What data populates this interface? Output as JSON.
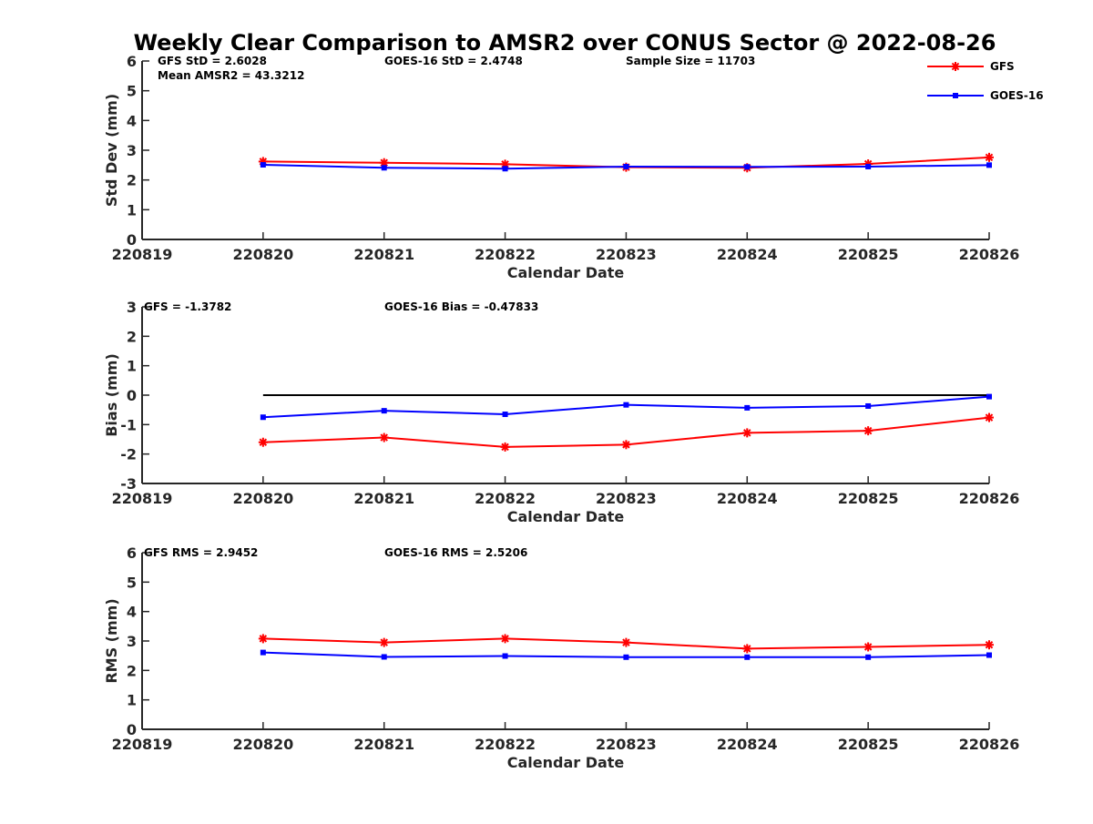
{
  "figure": {
    "title": "Weekly Clear Comparison to AMSR2 over CONUS Sector @ 2022-08-26"
  },
  "legend": {
    "position": "top-right",
    "entries": [
      {
        "name": "GFS",
        "color": "#ff0000",
        "marker": "asterisk"
      },
      {
        "name": "GOES-16",
        "color": "#0000ff",
        "marker": "square"
      }
    ]
  },
  "chart_data": [
    {
      "id": "stddev",
      "type": "line",
      "title": "",
      "xlabel": "Calendar Date",
      "ylabel": "Std Dev (mm)",
      "xlim": [
        0,
        7
      ],
      "ylim": [
        0,
        6
      ],
      "xticklabels": [
        "220819",
        "220820",
        "220821",
        "220822",
        "220823",
        "220824",
        "220825",
        "220826"
      ],
      "yticks": [
        0,
        1,
        2,
        3,
        4,
        5,
        6
      ],
      "grid": false,
      "reference_line": null,
      "annotations": [
        "GFS StD = 2.6028",
        "Mean AMSR2 = 43.3212",
        "GOES-16 StD = 2.4748",
        "Sample Size = 11703"
      ],
      "x": [
        "220820",
        "220821",
        "220822",
        "220823",
        "220824",
        "220825",
        "220826"
      ],
      "series": [
        {
          "name": "GFS",
          "color": "#ff0000",
          "marker": "asterisk",
          "values": [
            2.62,
            2.58,
            2.53,
            2.43,
            2.41,
            2.54,
            2.76
          ]
        },
        {
          "name": "GOES-16",
          "color": "#0000ff",
          "marker": "square",
          "values": [
            2.51,
            2.41,
            2.38,
            2.45,
            2.44,
            2.45,
            2.5
          ]
        }
      ]
    },
    {
      "id": "bias",
      "type": "line",
      "title": "",
      "xlabel": "Calendar Date",
      "ylabel": "Bias (mm)",
      "xlim": [
        0,
        7
      ],
      "ylim": [
        -3,
        3
      ],
      "xticklabels": [
        "220819",
        "220820",
        "220821",
        "220822",
        "220823",
        "220824",
        "220825",
        "220826"
      ],
      "yticks": [
        -3,
        -2,
        -1,
        0,
        1,
        2,
        3
      ],
      "grid": false,
      "reference_line": {
        "y": 0,
        "x_from": 1,
        "x_to": 7,
        "color": "#000000"
      },
      "annotations": [
        "GFS = -1.3782",
        "GOES-16 Bias  = -0.47833"
      ],
      "x": [
        "220820",
        "220821",
        "220822",
        "220823",
        "220824",
        "220825",
        "220826"
      ],
      "series": [
        {
          "name": "GFS",
          "color": "#ff0000",
          "marker": "asterisk",
          "values": [
            -1.6,
            -1.44,
            -1.76,
            -1.68,
            -1.28,
            -1.21,
            -0.76
          ]
        },
        {
          "name": "GOES-16",
          "color": "#0000ff",
          "marker": "square",
          "values": [
            -0.75,
            -0.53,
            -0.65,
            -0.33,
            -0.43,
            -0.37,
            -0.05
          ]
        }
      ]
    },
    {
      "id": "rms",
      "type": "line",
      "title": "",
      "xlabel": "Calendar Date",
      "ylabel": "RMS (mm)",
      "xlim": [
        0,
        7
      ],
      "ylim": [
        0,
        6
      ],
      "xticklabels": [
        "220819",
        "220820",
        "220821",
        "220822",
        "220823",
        "220824",
        "220825",
        "220826"
      ],
      "yticks": [
        0,
        1,
        2,
        3,
        4,
        5,
        6
      ],
      "grid": false,
      "reference_line": null,
      "annotations": [
        "GFS RMS = 2.9452",
        "GOES-16 RMS = 2.5206"
      ],
      "x": [
        "220820",
        "220821",
        "220822",
        "220823",
        "220824",
        "220825",
        "220826"
      ],
      "series": [
        {
          "name": "GFS",
          "color": "#ff0000",
          "marker": "asterisk",
          "values": [
            3.08,
            2.95,
            3.08,
            2.95,
            2.74,
            2.8,
            2.87
          ]
        },
        {
          "name": "GOES-16",
          "color": "#0000ff",
          "marker": "square",
          "values": [
            2.61,
            2.46,
            2.49,
            2.45,
            2.45,
            2.45,
            2.52
          ]
        }
      ]
    }
  ]
}
